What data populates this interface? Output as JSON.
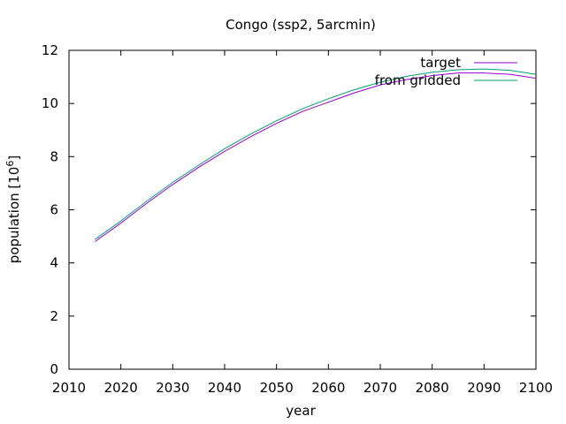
{
  "chart_data": {
    "type": "line",
    "title": "Congo (ssp2, 5arcmin)",
    "xlabel": "year",
    "ylabel_text": "population [10",
    "ylabel_exp": "6",
    "ylabel_close": "]",
    "xlim": [
      2010,
      2100
    ],
    "ylim": [
      0,
      12
    ],
    "xticks": [
      2010,
      2020,
      2030,
      2040,
      2050,
      2060,
      2070,
      2080,
      2090,
      2100
    ],
    "yticks": [
      0,
      2,
      4,
      6,
      8,
      10,
      12
    ],
    "grid": false,
    "legend_position": "top-right",
    "series": [
      {
        "name": "target",
        "color": "#9400d3",
        "x": [
          2015,
          2020,
          2025,
          2030,
          2035,
          2040,
          2045,
          2050,
          2055,
          2060,
          2065,
          2070,
          2075,
          2080,
          2085,
          2090,
          2095,
          2100
        ],
        "y": [
          4.8,
          5.5,
          6.25,
          6.95,
          7.6,
          8.2,
          8.75,
          9.25,
          9.7,
          10.05,
          10.4,
          10.7,
          10.9,
          11.05,
          11.15,
          11.15,
          11.1,
          10.95
        ]
      },
      {
        "name": "from gridded",
        "color": "#009e73",
        "x": [
          2015,
          2020,
          2025,
          2030,
          2035,
          2040,
          2045,
          2050,
          2055,
          2060,
          2065,
          2070,
          2075,
          2080,
          2085,
          2090,
          2095,
          2100
        ],
        "y": [
          4.88,
          5.58,
          6.33,
          7.03,
          7.68,
          8.3,
          8.85,
          9.35,
          9.8,
          10.18,
          10.52,
          10.8,
          11.02,
          11.18,
          11.27,
          11.3,
          11.25,
          11.1
        ]
      }
    ]
  }
}
